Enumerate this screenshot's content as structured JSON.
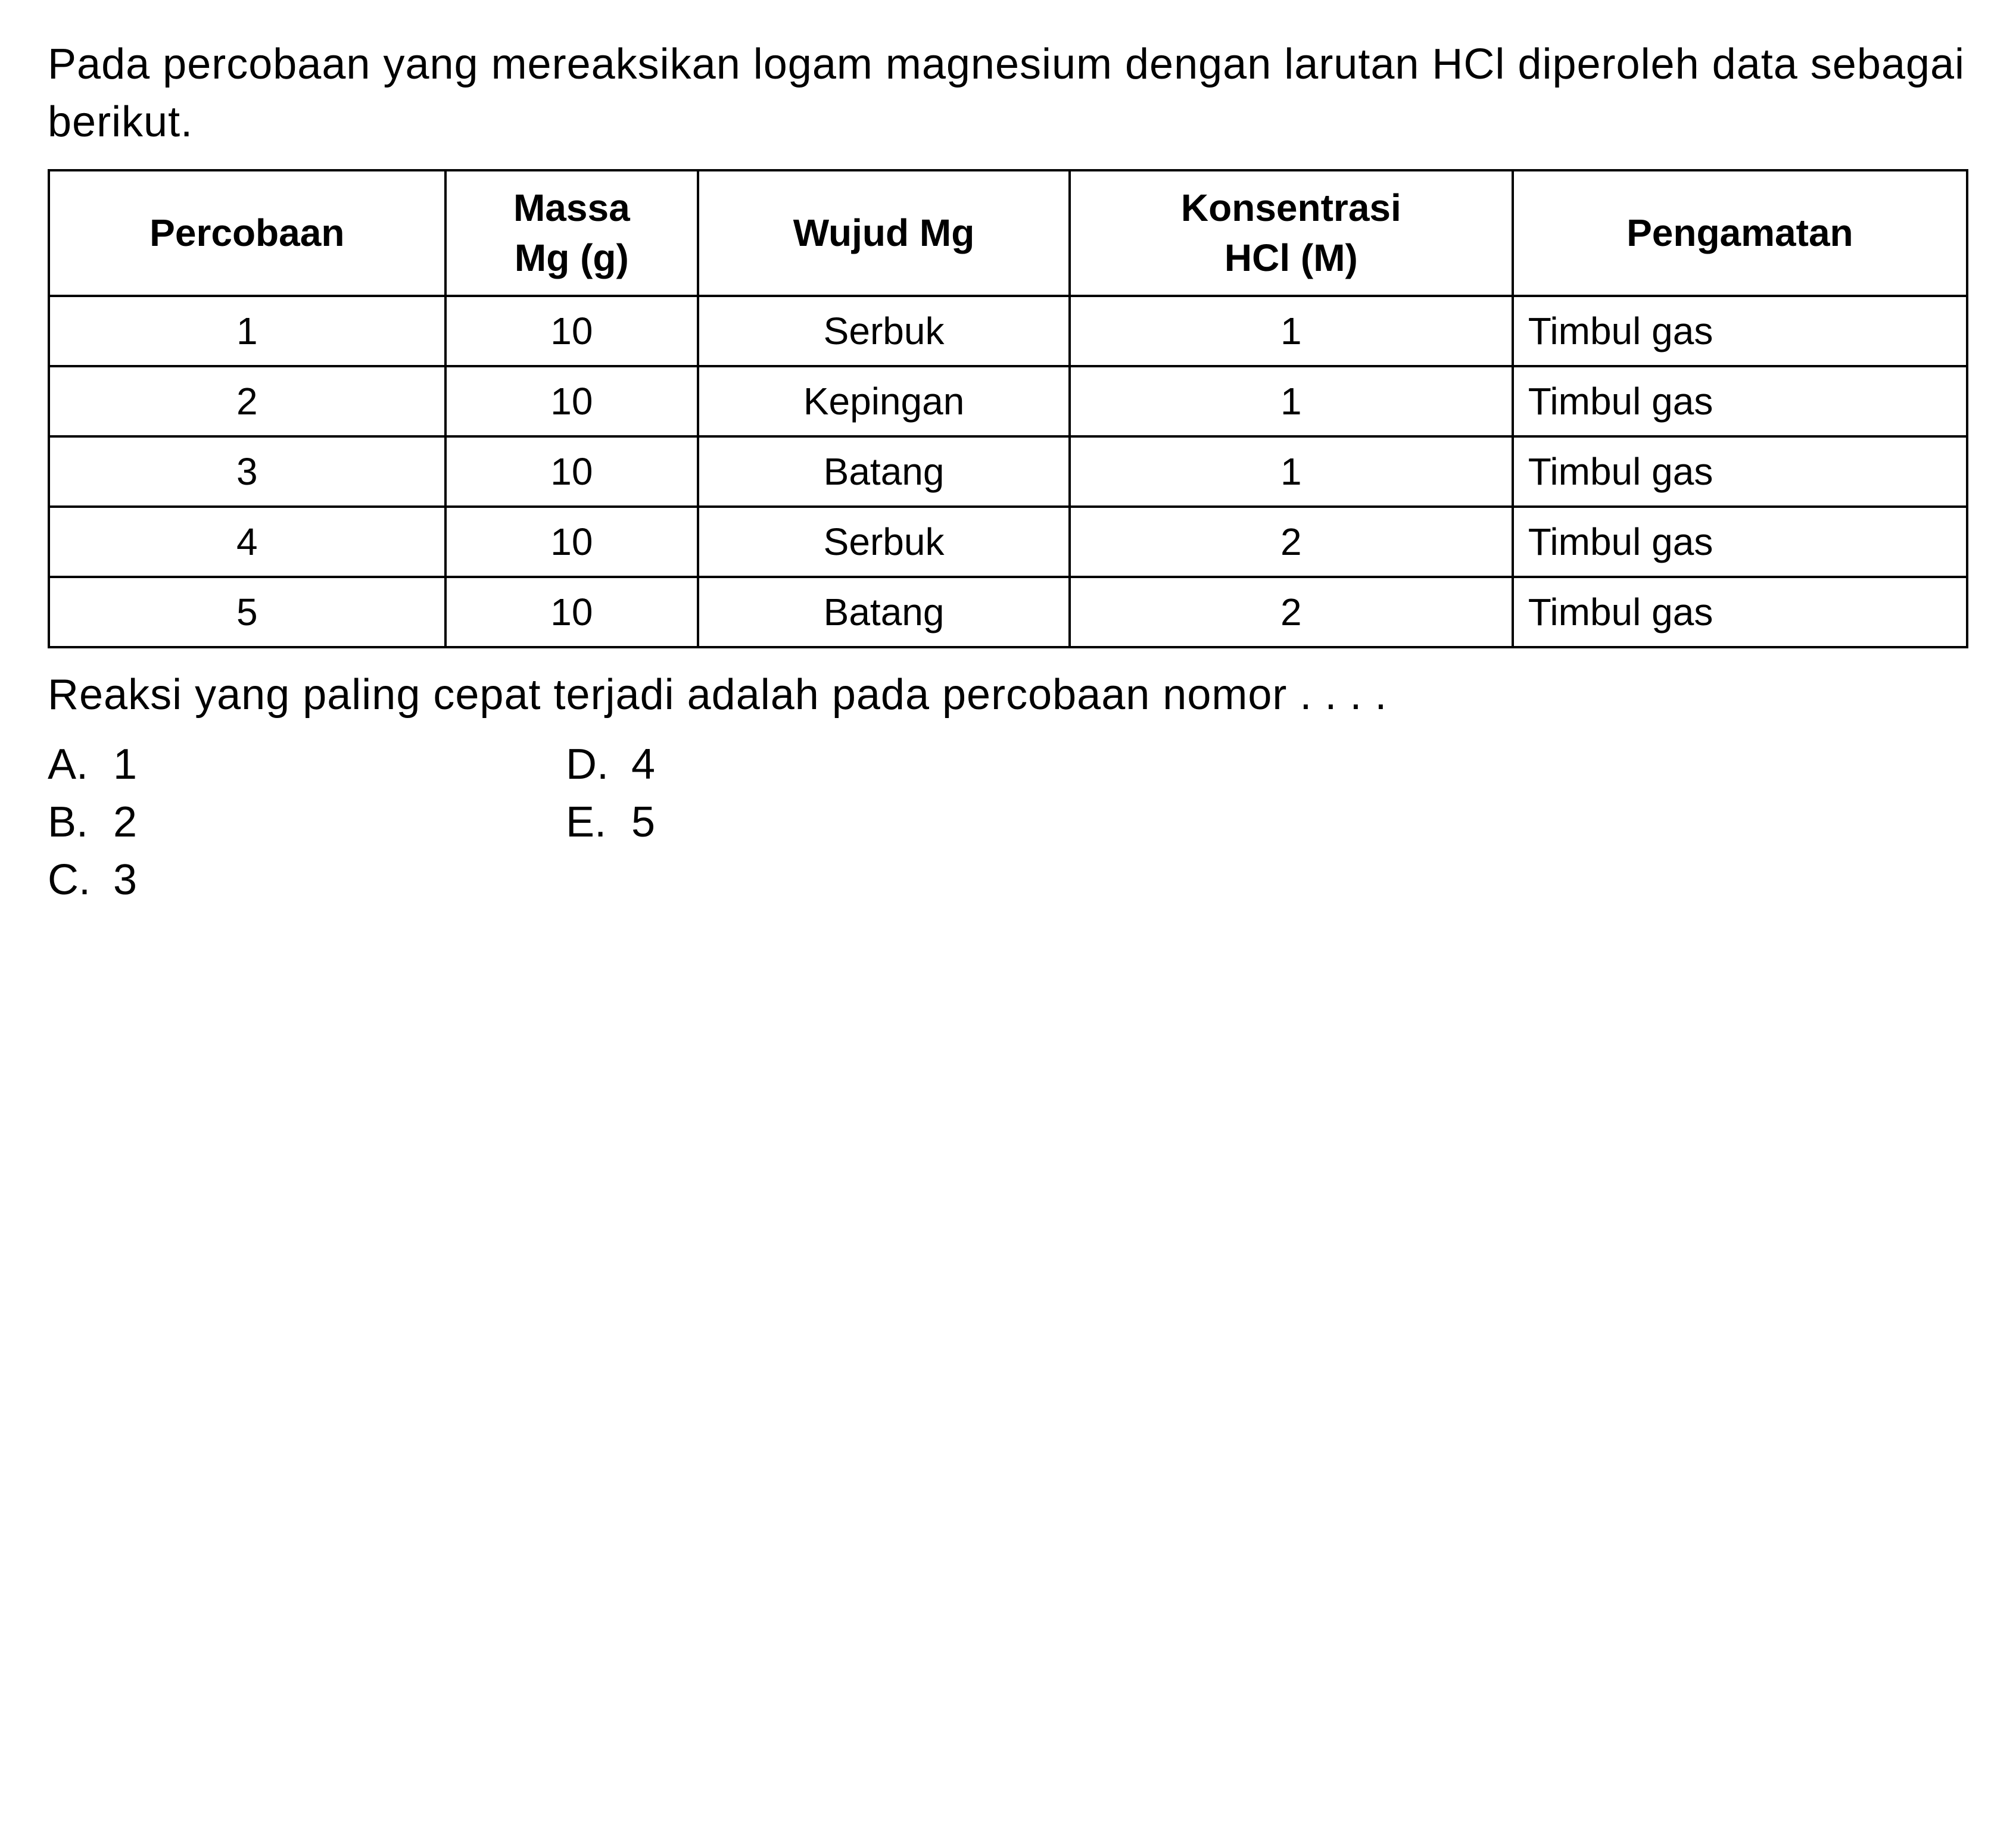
{
  "intro": "Pada percobaan yang mereaksikan logam magnesium dengan larutan HCl diperoleh data sebagai berikut.",
  "table": {
    "headers": {
      "col1": "Percobaan",
      "col2_line1": "Massa",
      "col2_line2": "Mg (g)",
      "col3": "Wujud Mg",
      "col4_line1": "Konsentrasi",
      "col4_line2": "HCl (M)",
      "col5": "Pengamatan"
    },
    "rows": [
      {
        "percobaan": "1",
        "massa": "10",
        "wujud": "Serbuk",
        "konsentrasi": "1",
        "pengamatan": "Timbul gas"
      },
      {
        "percobaan": "2",
        "massa": "10",
        "wujud": "Kepingan",
        "konsentrasi": "1",
        "pengamatan": "Timbul gas"
      },
      {
        "percobaan": "3",
        "massa": "10",
        "wujud": "Batang",
        "konsentrasi": "1",
        "pengamatan": "Timbul gas"
      },
      {
        "percobaan": "4",
        "massa": "10",
        "wujud": "Serbuk",
        "konsentrasi": "2",
        "pengamatan": "Timbul gas"
      },
      {
        "percobaan": "5",
        "massa": "10",
        "wujud": "Batang",
        "konsentrasi": "2",
        "pengamatan": "Timbul gas"
      }
    ]
  },
  "question": "Reaksi yang paling cepat terjadi adalah pada percobaan nomor . . . .",
  "options": {
    "A": {
      "label": "A.",
      "value": "1"
    },
    "B": {
      "label": "B.",
      "value": "2"
    },
    "C": {
      "label": "C.",
      "value": "3"
    },
    "D": {
      "label": "D.",
      "value": "4"
    },
    "E": {
      "label": "E.",
      "value": "5"
    }
  },
  "styling": {
    "background_color": "#ffffff",
    "text_color": "#000000",
    "border_color": "#000000",
    "body_fontsize": 72,
    "table_fontsize": 64,
    "border_width": 4
  }
}
